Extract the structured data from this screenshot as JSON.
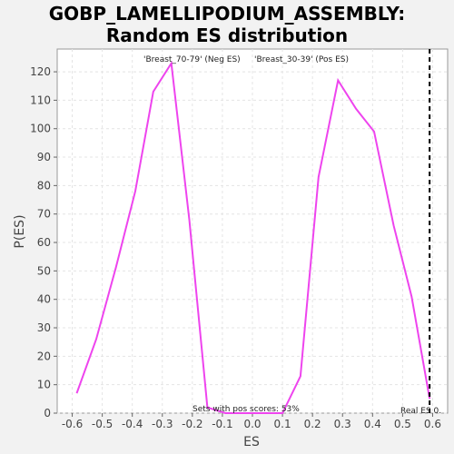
{
  "title": {
    "line1": "GOBP_LAMELLIPODIUM_ASSEMBLY:",
    "line2": "Random ES distribution"
  },
  "legend": {
    "neg_label": "'Breast_70-79' (Neg ES)",
    "pos_label": "'Breast_30-39' (Pos ES)",
    "neg_color": "#1f1fbf",
    "pos_color": "#e01010"
  },
  "annotations": {
    "pos_scores": "Sets with pos scores: 53%",
    "real_es": "Real ES 0.",
    "real_es_value": 0.59
  },
  "chart_data": {
    "type": "line",
    "xlabel": "ES",
    "ylabel": "P(ES)",
    "xlim": [
      -0.65,
      0.65
    ],
    "ylim": [
      0,
      128
    ],
    "xticks": [
      -0.6,
      -0.5,
      -0.4,
      -0.3,
      -0.2,
      -0.1,
      0.0,
      0.1,
      0.2,
      0.3,
      0.4,
      0.5,
      0.6
    ],
    "xtick_labels": [
      "-0.6",
      "-0.5",
      "-0.4",
      "-0.3",
      "-0.2",
      "-0.1",
      "0.0",
      "0.1",
      "0.2",
      "0.3",
      "0.4",
      "0.5",
      "0.6"
    ],
    "yticks": [
      0,
      10,
      20,
      30,
      40,
      50,
      60,
      70,
      80,
      90,
      100,
      110,
      120
    ],
    "ytick_labels": [
      "0",
      "10",
      "20",
      "30",
      "40",
      "50",
      "60",
      "70",
      "80",
      "90",
      "100",
      "110",
      "120"
    ],
    "grid": true,
    "line_color": "#ee44ee",
    "series": [
      {
        "x": [
          -0.585,
          -0.52,
          -0.455,
          -0.39,
          -0.33,
          -0.27,
          -0.21,
          -0.15,
          -0.09,
          -0.03,
          0.03,
          0.1,
          0.16,
          0.22,
          0.285,
          0.345,
          0.405,
          0.47,
          0.53,
          0.59
        ],
        "values": [
          7,
          26,
          51,
          78,
          113,
          123,
          68,
          2,
          0,
          0,
          0,
          0,
          13,
          83,
          117,
          107,
          99,
          66,
          41,
          5
        ]
      }
    ]
  }
}
